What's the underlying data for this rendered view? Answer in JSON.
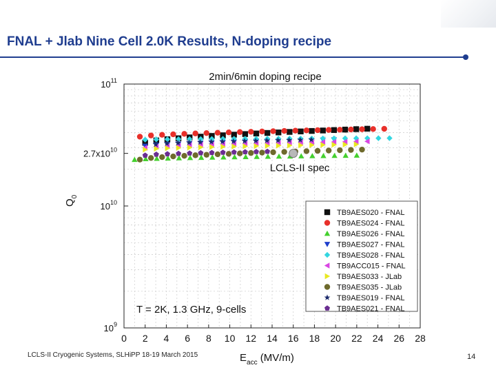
{
  "slide": {
    "title": "FNAL + Jlab Nine Cell 2.0K Results,  N-doping recipe",
    "footer": "LCLS-II Cryogenic Systems, SLHiPP 18-19 March 2015",
    "page_number": "14"
  },
  "chart_data": {
    "type": "scatter",
    "title": "2min/6min doping recipe",
    "xlabel": "Eacc (MV/m)",
    "ylabel": "Q0",
    "xlim": [
      0,
      28
    ],
    "ylim_log10": [
      9,
      11
    ],
    "y_scale": "log",
    "grid": true,
    "legend_position": "lower-right",
    "x_ticks": [
      "0",
      "2",
      "4",
      "6",
      "8",
      "10",
      "12",
      "14",
      "16",
      "18",
      "20",
      "22",
      "24",
      "26",
      "28"
    ],
    "y_ticks": [
      {
        "label": "10",
        "exp": "11",
        "value": 100000000000.0
      },
      {
        "label": "2.7x10",
        "exp": "10",
        "value": 27000000000.0
      },
      {
        "label": "10",
        "exp": "10",
        "value": 10000000000.0
      },
      {
        "label": "10",
        "exp": "9",
        "value": 1000000000.0
      }
    ],
    "annotations": {
      "conditions": "T = 2K, 1.3 GHz, 9-cells",
      "spec_label": "LCLS-II spec",
      "spec_point": {
        "x": 16,
        "y": 27000000000.0
      }
    },
    "series": [
      {
        "name": "TB9AES020 - FNAL",
        "marker": "square",
        "color": "#111111",
        "x": [
          2,
          23
        ],
        "y_start": 33000000000.0,
        "y_end": 43000000000.0
      },
      {
        "name": "TB9AES024 - FNAL",
        "marker": "circle",
        "color": "#e8302a",
        "x": [
          1.5,
          25
        ],
        "y_start": 37000000000.0,
        "y_end": 43000000000.0
      },
      {
        "name": "TB9AES026 - FNAL",
        "marker": "triangle-up",
        "color": "#44d02e",
        "x": [
          1,
          22
        ],
        "y_start": 24000000000.0,
        "y_end": 26000000000.0
      },
      {
        "name": "TB9AES027 - FNAL",
        "marker": "triangle-down",
        "color": "#1f3fcc",
        "x": [
          2,
          20
        ],
        "y_start": 31000000000.0,
        "y_end": 35000000000.0
      },
      {
        "name": "TB9AES028 - FNAL",
        "marker": "diamond",
        "color": "#33d6e0",
        "x": [
          2,
          25.5
        ],
        "y_start": 35000000000.0,
        "y_end": 36000000000.0
      },
      {
        "name": "TB9ACC015 - FNAL",
        "marker": "triangle-left",
        "color": "#d946e3",
        "x": [
          2,
          24
        ],
        "y_start": 30000000000.0,
        "y_end": 34000000000.0
      },
      {
        "name": "TB9AES033 - JLab",
        "marker": "triangle-right",
        "color": "#e8e821",
        "x": [
          2,
          22
        ],
        "y_start": 29000000000.0,
        "y_end": 32000000000.0
      },
      {
        "name": "TB9AES035 - JLab",
        "marker": "circle",
        "color": "#6e6a2c",
        "x": [
          1.5,
          22.5
        ],
        "y_start": 24000000000.0,
        "y_end": 29000000000.0
      },
      {
        "name": "TB9AES019 - FNAL",
        "marker": "star",
        "color": "#1b2a6b",
        "x": [
          3,
          18
        ],
        "y_start": 32000000000.0,
        "y_end": 35000000000.0
      },
      {
        "name": "TB9AES021 - FNAL",
        "marker": "pentagon",
        "color": "#6a2d91",
        "x": [
          2,
          14
        ],
        "y_start": 26000000000.0,
        "y_end": 28000000000.0
      }
    ]
  }
}
